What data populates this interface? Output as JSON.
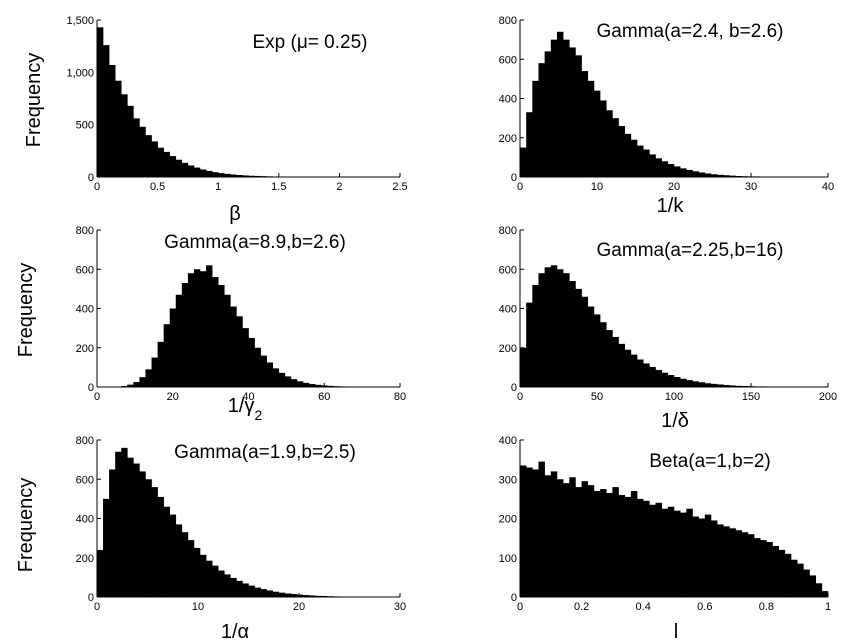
{
  "chart_data": [
    {
      "type": "bar",
      "title": "Exp (μ= 0.25)",
      "xlabel": "β",
      "xlabel_sub": "",
      "ylabel": "Frequency",
      "xlim": [
        0,
        2.5
      ],
      "ylim": [
        0,
        1500
      ],
      "xticks": [
        0,
        0.5,
        1,
        1.5,
        2,
        2.5
      ],
      "xtick_labels": [
        "0",
        "0.5",
        "1",
        "1.5",
        "2",
        "2.5"
      ],
      "yticks": [
        0,
        500,
        1000,
        1500
      ],
      "ytick_labels": [
        "0",
        "500",
        "1,000",
        "1,500"
      ],
      "bin_width": 0.05,
      "values": [
        1430,
        1260,
        1070,
        920,
        790,
        680,
        560,
        480,
        400,
        340,
        280,
        240,
        200,
        165,
        135,
        110,
        90,
        72,
        58,
        46,
        37,
        30,
        24,
        19,
        15,
        12,
        10,
        8,
        6,
        5,
        4,
        3,
        3,
        2,
        2,
        1,
        1,
        1,
        1,
        1,
        0,
        0,
        0,
        0,
        0,
        0,
        0,
        0,
        0,
        0
      ]
    },
    {
      "type": "bar",
      "title": "Gamma(a=2.4, b=2.6)",
      "xlabel": "1/k",
      "xlabel_sub": "",
      "ylabel": "",
      "xlim": [
        0,
        40
      ],
      "ylim": [
        0,
        800
      ],
      "xticks": [
        0,
        10,
        20,
        30,
        40
      ],
      "xtick_labels": [
        "0",
        "10",
        "20",
        "30",
        "40"
      ],
      "yticks": [
        0,
        200,
        400,
        600,
        800
      ],
      "ytick_labels": [
        "0",
        "200",
        "400",
        "600",
        "800"
      ],
      "bin_width": 0.8,
      "values": [
        150,
        330,
        490,
        580,
        640,
        700,
        740,
        700,
        660,
        620,
        540,
        490,
        440,
        390,
        340,
        300,
        260,
        220,
        190,
        160,
        140,
        115,
        95,
        80,
        66,
        54,
        44,
        36,
        29,
        23,
        18,
        14,
        11,
        9,
        7,
        5,
        4,
        3,
        3,
        2,
        2,
        1,
        1,
        1,
        0,
        0,
        0,
        0,
        0,
        0
      ]
    },
    {
      "type": "bar",
      "title": "Gamma(a=8.9,b=2.6)",
      "xlabel": "1/γ",
      "xlabel_sub": "2",
      "ylabel": "Frequency",
      "xlim": [
        0,
        80
      ],
      "ylim": [
        0,
        800
      ],
      "xticks": [
        0,
        20,
        40,
        60,
        80
      ],
      "xtick_labels": [
        "0",
        "20",
        "40",
        "60",
        "80"
      ],
      "yticks": [
        0,
        200,
        400,
        600,
        800
      ],
      "ytick_labels": [
        "0",
        "200",
        "400",
        "600",
        "800"
      ],
      "bin_width": 1.6,
      "values": [
        0,
        0,
        0,
        1,
        5,
        12,
        25,
        50,
        90,
        150,
        230,
        320,
        400,
        470,
        530,
        580,
        600,
        590,
        620,
        560,
        520,
        470,
        410,
        360,
        300,
        250,
        200,
        160,
        125,
        95,
        72,
        54,
        40,
        29,
        21,
        15,
        11,
        8,
        6,
        4,
        3,
        2,
        2,
        1,
        1,
        1,
        0,
        0,
        0,
        0
      ]
    },
    {
      "type": "bar",
      "title": "Gamma(a=2.25,b=16)",
      "xlabel": "1/δ",
      "xlabel_sub": "",
      "ylabel": "",
      "xlim": [
        0,
        200
      ],
      "ylim": [
        0,
        800
      ],
      "xticks": [
        0,
        50,
        100,
        150,
        200
      ],
      "xtick_labels": [
        "0",
        "50",
        "100",
        "150",
        "200"
      ],
      "yticks": [
        0,
        200,
        400,
        600,
        800
      ],
      "ytick_labels": [
        "0",
        "200",
        "400",
        "600",
        "800"
      ],
      "bin_width": 4,
      "values": [
        200,
        430,
        520,
        580,
        610,
        620,
        600,
        580,
        540,
        500,
        460,
        410,
        370,
        330,
        290,
        255,
        220,
        190,
        165,
        140,
        120,
        102,
        87,
        73,
        61,
        51,
        42,
        35,
        29,
        24,
        19,
        16,
        13,
        10,
        8,
        6,
        5,
        4,
        3,
        3,
        2,
        2,
        1,
        1,
        1,
        1,
        0,
        0,
        0,
        0
      ]
    },
    {
      "type": "bar",
      "title": "Gamma(a=1.9,b=2.5)",
      "xlabel": "1/α",
      "xlabel_sub": "",
      "ylabel": "Frequency",
      "xlim": [
        0,
        30
      ],
      "ylim": [
        0,
        800
      ],
      "xticks": [
        0,
        10,
        20,
        30
      ],
      "xtick_labels": [
        "0",
        "10",
        "20",
        "30"
      ],
      "yticks": [
        0,
        200,
        400,
        600,
        800
      ],
      "ytick_labels": [
        "0",
        "200",
        "400",
        "600",
        "800"
      ],
      "bin_width": 0.6,
      "values": [
        240,
        500,
        650,
        740,
        760,
        710,
        680,
        640,
        600,
        560,
        510,
        460,
        420,
        370,
        330,
        290,
        250,
        215,
        185,
        160,
        135,
        115,
        97,
        82,
        69,
        58,
        48,
        40,
        33,
        27,
        22,
        18,
        15,
        12,
        10,
        8,
        6,
        5,
        4,
        3,
        2,
        2,
        1,
        1,
        1,
        0,
        0,
        0,
        0,
        0
      ]
    },
    {
      "type": "bar",
      "title": "Beta(a=1,b=2)",
      "xlabel": "l",
      "xlabel_sub": "",
      "ylabel": "",
      "xlim": [
        0,
        1
      ],
      "ylim": [
        0,
        400
      ],
      "xticks": [
        0,
        0.2,
        0.4,
        0.6,
        0.8,
        1
      ],
      "xtick_labels": [
        "0",
        "0.2",
        "0.4",
        "0.6",
        "0.8",
        "1"
      ],
      "yticks": [
        0,
        100,
        200,
        300,
        400
      ],
      "ytick_labels": [
        "0",
        "100",
        "200",
        "300",
        "400"
      ],
      "bin_width": 0.02,
      "values": [
        335,
        330,
        325,
        345,
        310,
        320,
        300,
        290,
        305,
        280,
        295,
        285,
        270,
        275,
        265,
        280,
        260,
        255,
        270,
        250,
        245,
        235,
        240,
        225,
        230,
        220,
        215,
        225,
        205,
        200,
        210,
        195,
        185,
        180,
        175,
        170,
        165,
        160,
        150,
        145,
        140,
        130,
        120,
        110,
        95,
        85,
        70,
        55,
        35,
        15
      ]
    }
  ]
}
